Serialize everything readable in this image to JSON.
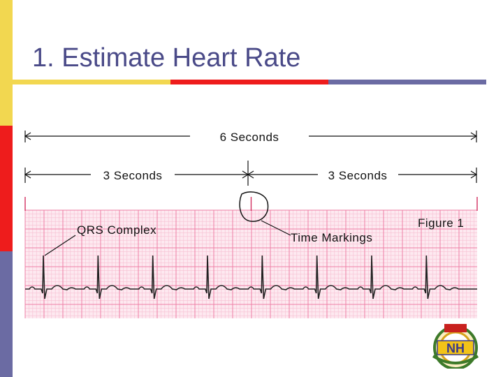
{
  "slide": {
    "title": "1. Estimate Heart Rate"
  },
  "figure": {
    "six_seconds": "6 Seconds",
    "three_seconds_left": "3 Seconds",
    "three_seconds_right": "3 Seconds",
    "qrs_label": "QRS Complex",
    "time_markings_label": "Time Markings",
    "figure_label": "Figure 1",
    "r_wave_count": 8
  },
  "logo": {
    "text": "NH"
  },
  "colors": {
    "title": "#4a4a88",
    "accent_yellow": "#f2d750",
    "accent_red": "#ee1c1c",
    "accent_blue": "#6b6ba3",
    "grid_minor": "#f7bfd2",
    "grid_major": "#ee7fa6",
    "strip_bg": "#fde9f0"
  }
}
